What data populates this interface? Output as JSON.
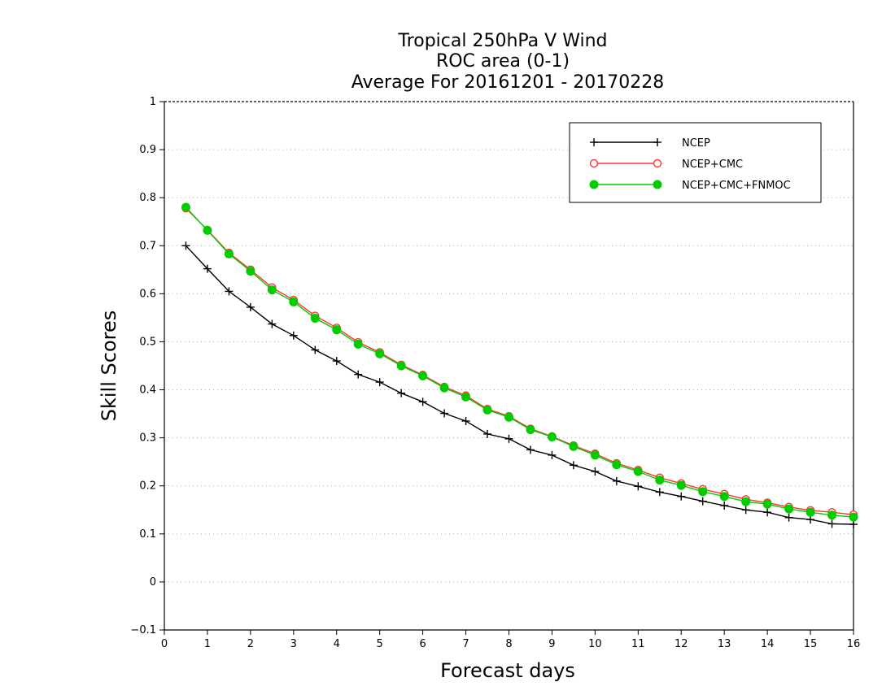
{
  "chart_data": {
    "type": "line",
    "title_lines": [
      "Tropical 250hPa V Wind",
      "ROC area (0-1)",
      "Average For 20161201 - 20170228"
    ],
    "xlabel": "Forecast days",
    "ylabel": "Skill Scores",
    "xlim": [
      0,
      16
    ],
    "ylim": [
      -0.1,
      1
    ],
    "x_ticks": [
      "0",
      "1",
      "2",
      "3",
      "4",
      "5",
      "6",
      "7",
      "8",
      "9",
      "10",
      "11",
      "12",
      "13",
      "14",
      "15",
      "16"
    ],
    "y_ticks": [
      "−0.1",
      "0",
      "0.1",
      "0.2",
      "0.3",
      "0.4",
      "0.5",
      "0.6",
      "0.7",
      "0.8",
      "0.9",
      "1"
    ],
    "grid": true,
    "legend_position": "top-right",
    "x": [
      0.5,
      1,
      1.5,
      2,
      2.5,
      3,
      3.5,
      4,
      4.5,
      5,
      5.5,
      6,
      6.5,
      7,
      7.5,
      8,
      8.5,
      9,
      9.5,
      10,
      10.5,
      11,
      11.5,
      12,
      12.5,
      13,
      13.5,
      14,
      14.5,
      15,
      15.5,
      16
    ],
    "series": [
      {
        "name": "NCEP",
        "color": "#000000",
        "marker": "plus",
        "values": [
          0.7,
          0.652,
          0.605,
          0.572,
          0.537,
          0.513,
          0.483,
          0.46,
          0.432,
          0.416,
          0.393,
          0.375,
          0.351,
          0.335,
          0.308,
          0.298,
          0.275,
          0.264,
          0.243,
          0.23,
          0.21,
          0.199,
          0.187,
          0.178,
          0.168,
          0.159,
          0.15,
          0.145,
          0.134,
          0.13,
          0.121,
          0.12
        ]
      },
      {
        "name": "NCEP+CMC",
        "color": "#ff3333",
        "marker": "open-circle",
        "values": [
          0.778,
          0.733,
          0.685,
          0.65,
          0.613,
          0.587,
          0.554,
          0.529,
          0.499,
          0.478,
          0.452,
          0.431,
          0.406,
          0.388,
          0.36,
          0.345,
          0.319,
          0.303,
          0.284,
          0.267,
          0.247,
          0.233,
          0.217,
          0.205,
          0.193,
          0.183,
          0.172,
          0.165,
          0.156,
          0.149,
          0.145,
          0.14
        ]
      },
      {
        "name": "NCEP+CMC+FNMOC",
        "color": "#00cc00",
        "marker": "filled-circle",
        "values": [
          0.78,
          0.732,
          0.683,
          0.647,
          0.608,
          0.583,
          0.549,
          0.525,
          0.495,
          0.475,
          0.45,
          0.429,
          0.404,
          0.385,
          0.358,
          0.343,
          0.317,
          0.302,
          0.282,
          0.264,
          0.244,
          0.23,
          0.212,
          0.201,
          0.188,
          0.178,
          0.167,
          0.162,
          0.152,
          0.145,
          0.139,
          0.135
        ]
      }
    ]
  }
}
